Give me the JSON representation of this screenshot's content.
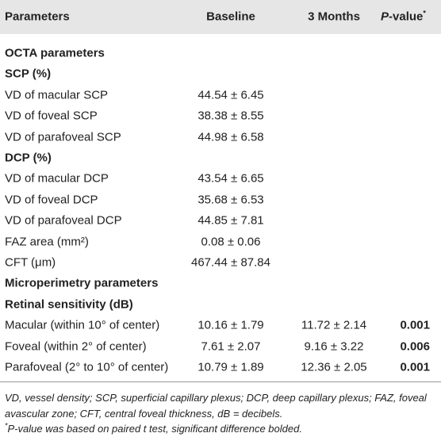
{
  "header": {
    "parameters": "Parameters",
    "baseline": "Baseline",
    "months": "3 Months",
    "pvalue": {
      "italic": "P",
      "rest": "-value",
      "sup": "*"
    }
  },
  "rows": [
    {
      "type": "section",
      "cells": [
        "OCTA parameters"
      ]
    },
    {
      "type": "subsection",
      "cells": [
        "SCP (%)"
      ]
    },
    {
      "type": "row",
      "cells": [
        "VD of macular SCP",
        "44.54 ± 6.45"
      ]
    },
    {
      "type": "row",
      "cells": [
        "VD of foveal SCP",
        "38.38 ± 8.55"
      ]
    },
    {
      "type": "row",
      "cells": [
        "VD of parafoveal SCP",
        "44.98 ± 6.58"
      ]
    },
    {
      "type": "subsection",
      "cells": [
        "DCP (%)"
      ]
    },
    {
      "type": "row",
      "cells": [
        "VD of macular DCP",
        "43.54 ± 6.65"
      ]
    },
    {
      "type": "row",
      "cells": [
        "VD of foveal DCP",
        "35.68 ± 6.53"
      ]
    },
    {
      "type": "row",
      "cells": [
        "VD of parafoveal DCP",
        "44.85 ± 7.81"
      ]
    },
    {
      "type": "row",
      "cells": [
        "FAZ area (mm²)",
        "0.08 ± 0.06"
      ]
    },
    {
      "type": "row",
      "cells": [
        "CFT (μm)",
        "467.44 ± 87.84"
      ]
    },
    {
      "type": "section",
      "cells": [
        "Microperimetry parameters"
      ]
    },
    {
      "type": "subsection",
      "cells": [
        "Retinal sensitivity (dB)"
      ]
    },
    {
      "type": "row",
      "cells": [
        "Macular (within 10° of center)",
        "10.16 ± 1.79",
        "11.72 ± 2.14",
        "0.001"
      ]
    },
    {
      "type": "row",
      "cells": [
        "Foveal (within 2° of center)",
        "7.61 ± 2.07",
        "9.16 ± 3.22",
        "0.006"
      ]
    },
    {
      "type": "row",
      "cells": [
        "Parafoveal (2° to 10° of center)",
        "10.79 ± 1.89",
        "12.36 ± 2.05",
        "0.001"
      ]
    }
  ],
  "notes": {
    "abbreviations": "VD, vessel density; SCP, superficial capillary plexus; DCP, deep capillary plexus; FAZ, foveal avascular zone; CFT, central foveal thickness, dB = decibels.",
    "footnote": {
      "sup": "*",
      "text": "P-value was based on paired t test, significant difference bolded."
    }
  }
}
